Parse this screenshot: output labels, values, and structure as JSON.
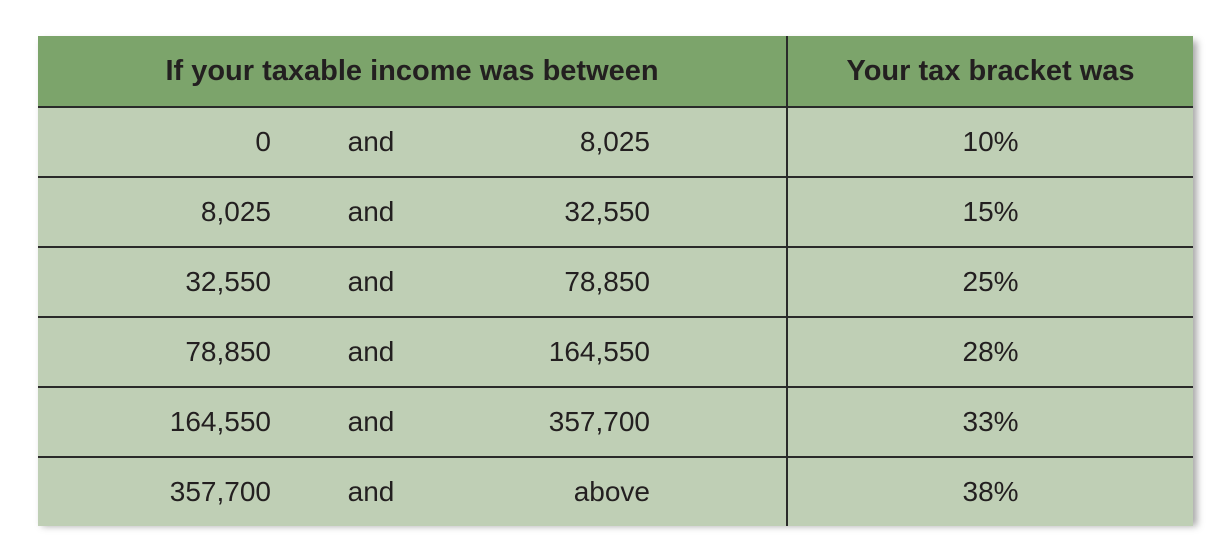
{
  "headers": {
    "income": "If your taxable income was between",
    "bracket": "Your tax bracket was"
  },
  "rows": [
    {
      "from": "0",
      "conj": "and",
      "to": "8,025",
      "rate": "10%"
    },
    {
      "from": "8,025",
      "conj": "and",
      "to": "32,550",
      "rate": "15%"
    },
    {
      "from": "32,550",
      "conj": "and",
      "to": "78,850",
      "rate": "25%"
    },
    {
      "from": "78,850",
      "conj": "and",
      "to": "164,550",
      "rate": "28%"
    },
    {
      "from": "164,550",
      "conj": "and",
      "to": "357,700",
      "rate": "33%"
    },
    {
      "from": "357,700",
      "conj": "and",
      "to": "above",
      "rate": "38%"
    }
  ],
  "colors": {
    "header_bg": "#7ca46b",
    "body_bg": "#bfcfb5",
    "rule": "#2a2a2a"
  }
}
